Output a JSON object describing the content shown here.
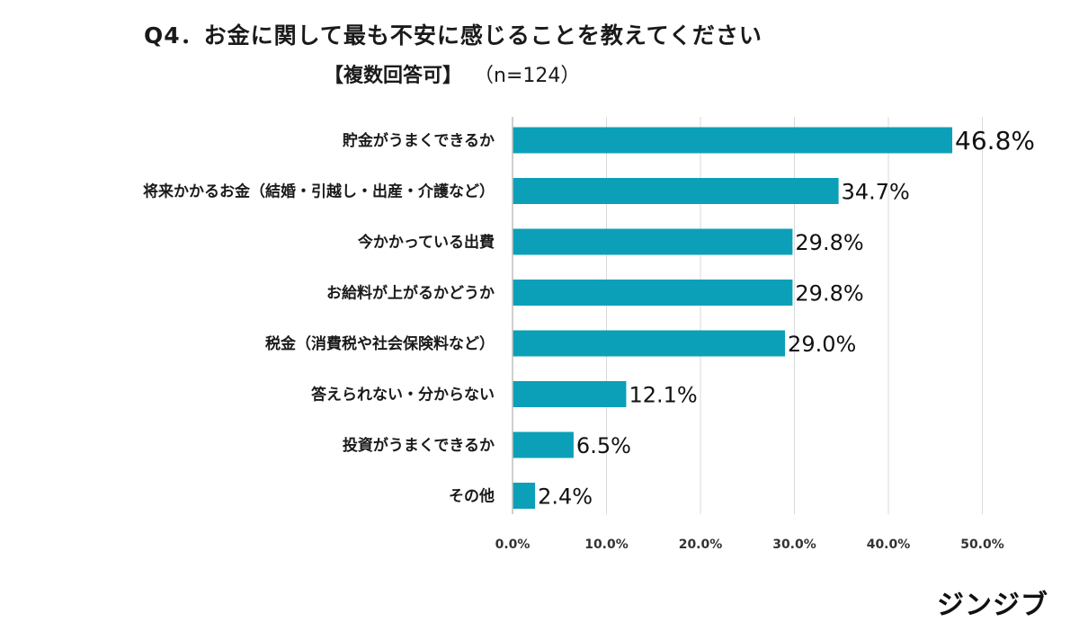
{
  "title": "Q4．お金に関して最も不安に感じることを教えてください",
  "subtitle": "【複数回答可】",
  "sample": "（n=124）",
  "brand": "ジンジブ",
  "colors": {
    "bar": "#0ba0b8",
    "grid": "#d9d9d9",
    "axis": "#bfbfbf",
    "text": "#1a1a1a"
  },
  "chart_data": {
    "type": "bar",
    "orientation": "horizontal",
    "categories": [
      "貯金がうまくできるか",
      "将来かかるお金（結婚・引越し・出産・介護など）",
      "今かかっている出費",
      "お給料が上がるかどうか",
      "税金（消費税や社会保険料など）",
      "答えられない・分からない",
      "投資がうまくできるか",
      "その他"
    ],
    "values": [
      46.8,
      34.7,
      29.8,
      29.8,
      29.0,
      12.1,
      6.5,
      2.4
    ],
    "value_labels": [
      "46.8%",
      "34.7%",
      "29.8%",
      "29.8%",
      "29.0%",
      "12.1%",
      "6.5%",
      "2.4%"
    ],
    "xlim": [
      0,
      50
    ],
    "x_ticks": [
      0,
      10,
      20,
      30,
      40,
      50
    ],
    "x_tick_labels": [
      "0.0%",
      "10.0%",
      "20.0%",
      "30.0%",
      "40.0%",
      "50.0%"
    ],
    "grid": true
  }
}
